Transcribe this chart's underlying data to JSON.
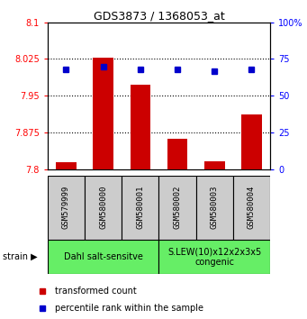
{
  "title": "GDS3873 / 1368053_at",
  "samples": [
    "GSM579999",
    "GSM580000",
    "GSM580001",
    "GSM580002",
    "GSM580003",
    "GSM580004"
  ],
  "transformed_counts": [
    7.814,
    8.028,
    7.973,
    7.862,
    7.815,
    7.912
  ],
  "percentile_ranks": [
    68,
    70,
    68,
    68,
    67,
    68
  ],
  "ylim_left": [
    7.8,
    8.1
  ],
  "ylim_right": [
    0,
    100
  ],
  "yticks_left": [
    7.8,
    7.875,
    7.95,
    8.025,
    8.1
  ],
  "yticks_right": [
    0,
    25,
    50,
    75,
    100
  ],
  "ytick_labels_left": [
    "7.8",
    "7.875",
    "7.95",
    "8.025",
    "8.1"
  ],
  "ytick_labels_right": [
    "0",
    "25",
    "50",
    "75",
    "100%"
  ],
  "bar_color": "#cc0000",
  "dot_color": "#0000cc",
  "bar_baseline": 7.8,
  "group1_label": "Dahl salt-sensitve",
  "group2_label": "S.LEW(10)x12x2x3x5\ncongenic",
  "group1_indices": [
    0,
    1,
    2
  ],
  "group2_indices": [
    3,
    4,
    5
  ],
  "group_bg_color": "#66ee66",
  "sample_bg_color": "#cccccc",
  "legend_bar_label": "transformed count",
  "legend_dot_label": "percentile rank within the sample",
  "strain_label": "strain",
  "dotted_yticks": [
    7.875,
    7.95,
    8.025
  ]
}
